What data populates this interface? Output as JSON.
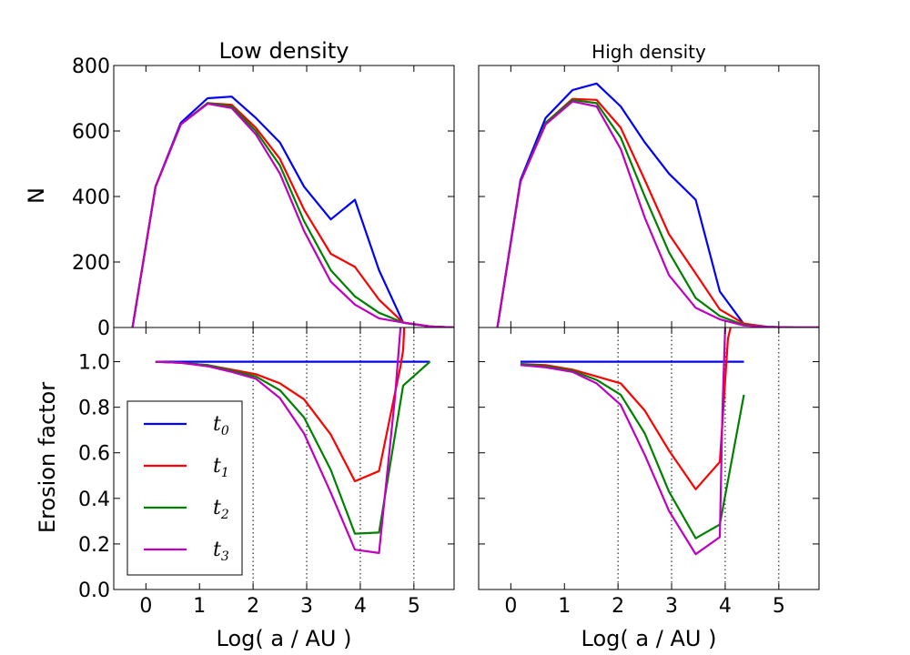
{
  "chart_data": {
    "type": "line",
    "xlabel": "Log( a / AU )",
    "panels": [
      {
        "title": "Low density",
        "top": {
          "ylabel": "N",
          "xlim": [
            -0.6,
            5.75
          ],
          "ylim": [
            0,
            800
          ],
          "yticks": [
            0,
            200,
            400,
            600,
            800
          ],
          "x": [
            -0.25,
            0.18,
            0.65,
            1.15,
            1.6,
            2.05,
            2.5,
            2.95,
            3.45,
            3.9,
            4.35,
            4.8,
            5.3,
            5.75
          ],
          "series": [
            {
              "name": "t0",
              "values": [
                0,
                430,
                625,
                700,
                705,
                640,
                565,
                430,
                330,
                390,
                175,
                15,
                3,
                0
              ]
            },
            {
              "name": "t1",
              "values": [
                0,
                430,
                620,
                685,
                680,
                610,
                515,
                360,
                225,
                185,
                85,
                15,
                3,
                0
              ]
            },
            {
              "name": "t2",
              "values": [
                0,
                430,
                620,
                685,
                675,
                600,
                495,
                325,
                175,
                95,
                45,
                15,
                3,
                0
              ]
            },
            {
              "name": "t3",
              "values": [
                0,
                430,
                620,
                683,
                670,
                590,
                470,
                295,
                140,
                70,
                28,
                15,
                3,
                0
              ]
            }
          ]
        },
        "bottom": {
          "ylabel": "Erosion factor",
          "xlim": [
            -0.6,
            5.75
          ],
          "ylim": [
            0,
            1.15
          ],
          "yticks": [
            0.0,
            0.2,
            0.4,
            0.6,
            0.8,
            1.0
          ],
          "xticks": [
            0,
            1,
            2,
            3,
            4,
            5
          ],
          "vlines": [
            2,
            3,
            4,
            5
          ],
          "series": [
            {
              "name": "t0",
              "x": [
                0.18,
                5.3
              ],
              "values": [
                1.0,
                1.0
              ]
            },
            {
              "name": "t1",
              "x": [
                0.18,
                0.65,
                1.15,
                1.6,
                2.05,
                2.5,
                2.95,
                3.45,
                3.9,
                4.35,
                4.75,
                4.8,
                4.82
              ],
              "values": [
                1.0,
                0.995,
                0.985,
                0.965,
                0.945,
                0.905,
                0.835,
                0.68,
                0.475,
                0.52,
                0.98,
                1.05,
                1.15
              ]
            },
            {
              "name": "t2",
              "x": [
                0.18,
                0.65,
                1.15,
                1.6,
                2.05,
                2.5,
                2.95,
                3.45,
                3.9,
                4.35,
                4.8,
                5.3
              ],
              "values": [
                1.0,
                0.995,
                0.985,
                0.96,
                0.935,
                0.875,
                0.755,
                0.525,
                0.245,
                0.25,
                0.895,
                1.0
              ]
            },
            {
              "name": "t3",
              "x": [
                0.18,
                0.65,
                1.15,
                1.6,
                2.05,
                2.5,
                2.95,
                3.45,
                3.9,
                4.35,
                4.65,
                4.75
              ],
              "values": [
                1.0,
                0.995,
                0.98,
                0.955,
                0.925,
                0.84,
                0.685,
                0.425,
                0.175,
                0.16,
                0.85,
                1.15
              ]
            }
          ]
        }
      },
      {
        "title": "High density",
        "top": {
          "xlim": [
            -0.6,
            5.75
          ],
          "ylim": [
            0,
            800
          ],
          "x": [
            -0.25,
            0.18,
            0.65,
            1.15,
            1.6,
            2.05,
            2.5,
            2.95,
            3.45,
            3.9,
            4.35,
            4.8,
            5.3,
            5.75
          ],
          "series": [
            {
              "name": "t0",
              "values": [
                0,
                450,
                640,
                725,
                745,
                675,
                565,
                470,
                390,
                110,
                10,
                2,
                0,
                0
              ]
            },
            {
              "name": "t1",
              "values": [
                0,
                445,
                625,
                698,
                695,
                610,
                450,
                285,
                165,
                55,
                12,
                2,
                0,
                0
              ]
            },
            {
              "name": "t2",
              "values": [
                0,
                445,
                625,
                695,
                685,
                580,
                400,
                230,
                90,
                35,
                8,
                2,
                0,
                0
              ]
            },
            {
              "name": "t3",
              "values": [
                0,
                445,
                620,
                690,
                675,
                545,
                335,
                160,
                60,
                25,
                6,
                2,
                0,
                0
              ]
            }
          ]
        },
        "bottom": {
          "xlim": [
            -0.6,
            5.75
          ],
          "ylim": [
            0,
            1.15
          ],
          "xticks": [
            0,
            1,
            2,
            3,
            4,
            5
          ],
          "vlines": [
            2,
            3,
            4,
            5
          ],
          "series": [
            {
              "name": "t0",
              "x": [
                0.18,
                4.35
              ],
              "values": [
                1.0,
                1.0
              ]
            },
            {
              "name": "t1",
              "x": [
                0.18,
                0.65,
                1.15,
                1.6,
                2.05,
                2.5,
                2.95,
                3.45,
                3.9,
                4.05,
                4.1
              ],
              "values": [
                0.99,
                0.985,
                0.965,
                0.935,
                0.905,
                0.785,
                0.61,
                0.44,
                0.56,
                1.1,
                1.15
              ]
            },
            {
              "name": "t2",
              "x": [
                0.18,
                0.65,
                1.15,
                1.6,
                2.05,
                2.5,
                2.95,
                3.45,
                3.9,
                4.35
              ],
              "values": [
                0.99,
                0.98,
                0.96,
                0.92,
                0.855,
                0.685,
                0.43,
                0.225,
                0.285,
                0.855
              ]
            },
            {
              "name": "t3",
              "x": [
                0.18,
                0.65,
                1.15,
                1.6,
                2.05,
                2.5,
                2.95,
                3.45,
                3.9,
                3.95,
                4.0
              ],
              "values": [
                0.985,
                0.975,
                0.955,
                0.905,
                0.81,
                0.59,
                0.345,
                0.155,
                0.23,
                0.8,
                1.15
              ]
            }
          ]
        }
      }
    ],
    "legend": {
      "placement": "lower-left of bottom-left panel",
      "entries": [
        {
          "symbol": "t",
          "sub": "0",
          "color": "#0000ff"
        },
        {
          "symbol": "t",
          "sub": "1",
          "color": "#ff0000"
        },
        {
          "symbol": "t",
          "sub": "2",
          "color": "#008000"
        },
        {
          "symbol": "t",
          "sub": "3",
          "color": "#bf00bf"
        }
      ]
    },
    "colors": {
      "t0": "#0000ff",
      "t1": "#ff0000",
      "t2": "#008000",
      "t3": "#bf00bf"
    }
  }
}
